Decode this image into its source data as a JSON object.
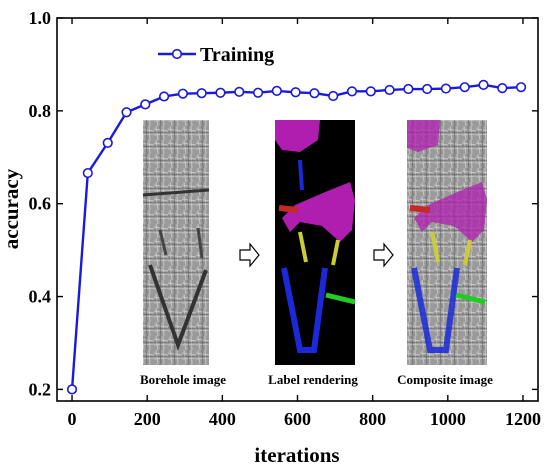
{
  "chart_data": {
    "type": "line",
    "xlabel": "iterations",
    "ylabel": "accuracy",
    "xlim": [
      -40,
      1240
    ],
    "ylim": [
      0.175,
      1.0
    ],
    "x_ticks": [
      0,
      200,
      400,
      600,
      800,
      1000,
      1200
    ],
    "y_ticks": [
      0.2,
      0.4,
      0.6,
      0.8,
      1.0
    ],
    "y_tick_labels": [
      "0.2",
      "0.4",
      "0.6",
      "0.8",
      "1.0"
    ],
    "legend_position": "top-left",
    "series": [
      {
        "name": "Training",
        "color": "#1a1adc",
        "marker": "open-circle",
        "x": [
          0,
          42,
          95,
          145,
          195,
          245,
          295,
          345,
          395,
          445,
          495,
          545,
          595,
          645,
          695,
          745,
          795,
          845,
          895,
          945,
          995,
          1045,
          1095,
          1145,
          1195
        ],
        "y": [
          0.2,
          0.666,
          0.731,
          0.797,
          0.814,
          0.831,
          0.837,
          0.838,
          0.839,
          0.841,
          0.839,
          0.843,
          0.84,
          0.838,
          0.832,
          0.842,
          0.842,
          0.845,
          0.847,
          0.847,
          0.848,
          0.851,
          0.856,
          0.849,
          0.851
        ]
      }
    ],
    "inset": {
      "captions": [
        "Borehole image",
        "Label rendering",
        "Composite image"
      ]
    }
  }
}
